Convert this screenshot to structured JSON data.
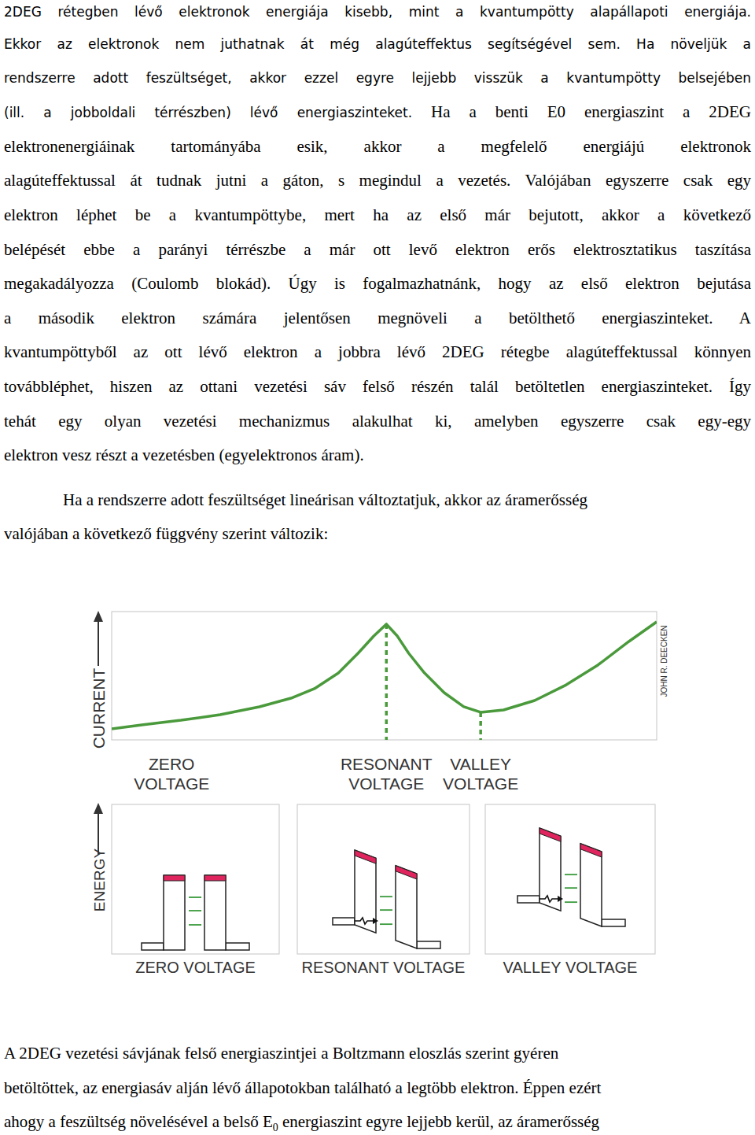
{
  "paragraphs": [
    {
      "lines": [
        [
          "2DEG rétegben lévő elektronok energiája kisebb, mint a kvantumpötty alapállapoti energiája."
        ],
        [
          "Ekkor az elektronok nem juthatnak át még alagúteffektus segítségével sem. Ha növeljük a"
        ],
        [
          "rendszerre adott feszültséget, akkor ezzel egyre lejjebb visszük a kvantumpötty belsejében"
        ],
        [
          "(ill. a jobboldali térrészben) lévő energiaszinteket.",
          " Ha a benti E0 energiaszint a 2DEG"
        ],
        [
          "elektronenergiáinak tartományába esik, akkor a megfelelő energiájú elektronok"
        ],
        [
          "alagúteffektussal át tudnak jutni a gáton, s megindul a vezetés. Valójában egyszerre csak egy"
        ],
        [
          "elektron léphet be a kvantumpöttybe, mert ha az első már bejutott, akkor a következő"
        ],
        [
          "belépését ebbe a parányi térrészbe a már ott levő elektron erős elektrosztatikus taszítása"
        ],
        [
          "megakadályozza (Coulomb blokád). Úgy is fogalmazhatnánk, hogy az első elektron bejutása"
        ],
        [
          "a második elektron számára jelentősen megnöveli a betölthető energiaszinteket. A"
        ],
        [
          "kvantumpöttyből az ott lévő elektron a jobbra lévő 2DEG rétegbe alagúteffektussal könnyen"
        ],
        [
          "továbbléphet, hiszen az ottani vezetési sáv felső részén talál betöltetlen energiaszinteket. Így"
        ],
        [
          "tehát egy olyan vezetési mechanizmus alakulhat ki, amelyben egyszerre csak egy-egy"
        ],
        [
          "elektron vesz részt a vezetésben (egyelektronos áram)."
        ]
      ]
    },
    {
      "lines": [
        [
          "Ha a rendszerre adott feszültséget lineárisan változtatjuk, akkor az áramerősség"
        ],
        [
          "valójában a következő függvény szerint változik:"
        ]
      ]
    },
    {
      "lines": [
        [
          "A 2DEG vezetési sávjának felső energiaszintjei a Boltzmann eloszlás szerint gyéren"
        ],
        [
          "betöltöttek, az energiasáv alján lévő állapotokban található a legtöbb elektron. Éppen ezért"
        ],
        [
          "ahogy a feszültség növelésével a belső E",
          "0",
          " energiaszint egyre lejjebb kerül, az áramerősség"
        ]
      ]
    }
  ],
  "chart_data": {
    "type": "line",
    "ylabel": "CURRENT",
    "credit": "JOHN R. DEECKEN",
    "color": "#4a9a3c",
    "x": [
      0,
      5.5,
      12.7,
      19.9,
      27.1,
      32.9,
      37.2,
      41.6,
      45.2,
      48.1,
      50.4,
      52.4,
      54.5,
      57.4,
      61.0,
      64.6,
      67.7,
      71.9,
      77.6,
      83.4,
      89.2,
      94.9,
      100
    ],
    "values": [
      8.6,
      11.7,
      15.3,
      19.6,
      25.8,
      32.5,
      39.9,
      52.1,
      67.5,
      81.0,
      90.2,
      81.0,
      67.5,
      52.1,
      36.8,
      25.8,
      21.5,
      23.3,
      30.7,
      42.9,
      58.3,
      76.7,
      92.0
    ],
    "xlim": [
      0,
      100
    ],
    "ylim": [
      0,
      100
    ],
    "tick_labels": false,
    "line_style": "solid",
    "markers": [
      {
        "label": [
          "ZERO",
          "VOLTAGE"
        ],
        "x": 11.0
      },
      {
        "label": [
          "RESONANT",
          "VOLTAGE"
        ],
        "x": 50.4,
        "y": 90.2
      },
      {
        "label": [
          "VALLEY",
          "VOLTAGE"
        ],
        "x": 67.7,
        "y": 21.5
      }
    ]
  },
  "energy_diagrams": {
    "ylabel": "ENERGY",
    "panels": [
      {
        "label": "ZERO VOLTAGE"
      },
      {
        "label": "RESONANT VOLTAGE"
      },
      {
        "label": "VALLEY VOLTAGE"
      }
    ]
  }
}
